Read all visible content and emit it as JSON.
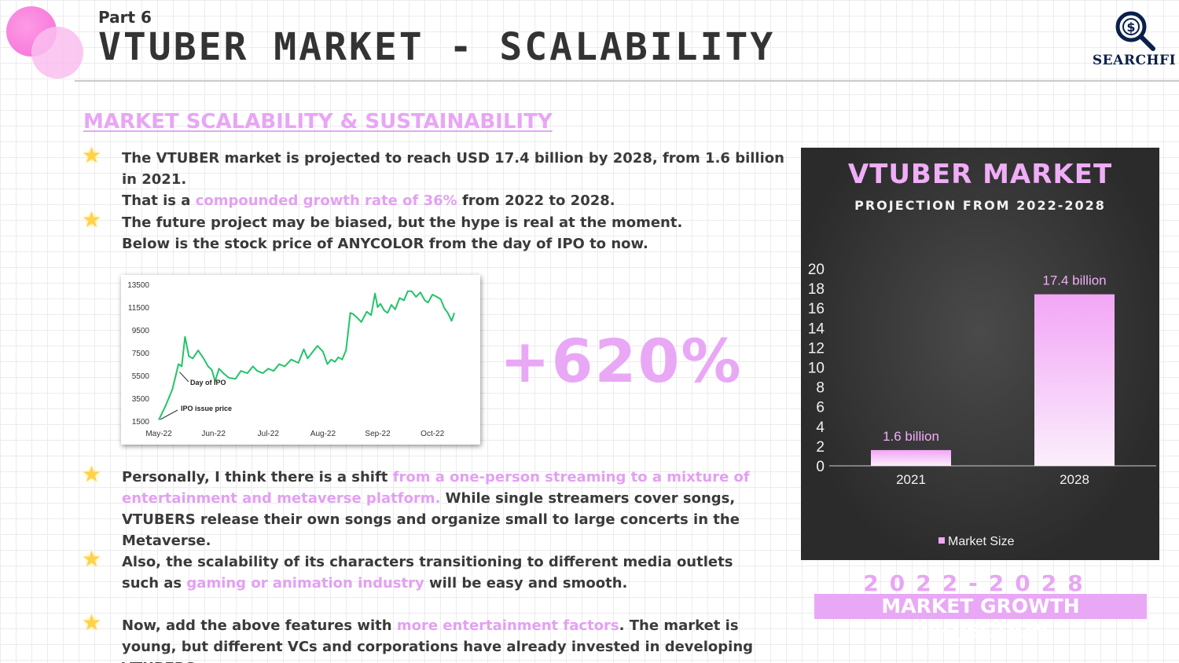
{
  "header": {
    "part": "Part 6",
    "title": "VTUBER MARKET - SCALABILITY",
    "logo_text": "SEARCHFI"
  },
  "section_heading": "MARKET SCALABILITY & SUSTAINABILITY",
  "bullets": [
    [
      {
        "t": "The VTUBER market is projected to reach USD 17.4 billion by 2028, from 1.6 billion in 2021.",
        "hl": false,
        "br": true
      },
      {
        "t": "That is a ",
        "hl": false
      },
      {
        "t": "compounded growth rate of 36%",
        "hl": true
      },
      {
        "t": " from 2022 to 2028.",
        "hl": false
      }
    ],
    [
      {
        "t": "The future project may be biased, but the hype is real at the moment.",
        "hl": false,
        "br": true
      },
      {
        "t": "Below is the stock price of ANYCOLOR from the day of IPO to now.",
        "hl": false
      }
    ],
    [
      {
        "t": "Personally, I think there is a shift ",
        "hl": false
      },
      {
        "t": "from a one-person streaming to a mixture of entertainment and metaverse platform.",
        "hl": true
      },
      {
        "t": " While single streamers cover songs, VTUBERS release their own songs and organize small to large concerts in the Metaverse.",
        "hl": false
      }
    ],
    [
      {
        "t": "Also, the scalability of its characters transitioning to different media outlets such as ",
        "hl": false
      },
      {
        "t": "gaming or animation industry",
        "hl": true
      },
      {
        "t": " will be easy and smooth.",
        "hl": false
      }
    ],
    [
      {
        "t": "Now, add the above features with ",
        "hl": false
      },
      {
        "t": "more entertainment factors",
        "hl": true
      },
      {
        "t": ". The market is young, but different VCs and corporations have already invested in developing VTUBERS.",
        "hl": false
      }
    ]
  ],
  "percent_badge": "+620%",
  "projection": {
    "years": "2022-2028",
    "banner": "MARKET GROWTH PROJECTION"
  },
  "colors": {
    "accent_pink": "#e9a8f6",
    "stock_line": "#22c46a",
    "panel_bg": "#333333"
  },
  "chart_data": [
    {
      "type": "line",
      "title": "",
      "xlabel": "",
      "ylabel": "",
      "xticks": [
        "May-22",
        "Jun-22",
        "Jul-22",
        "Aug-22",
        "Sep-22",
        "Oct-22"
      ],
      "yticks": [
        1500,
        3500,
        5500,
        7500,
        9500,
        11500,
        13500
      ],
      "ylim": [
        1500,
        13500
      ],
      "x_range_months": [
        0,
        5.5
      ],
      "annotations": [
        {
          "label": "Day of IPO",
          "x": 0.38,
          "y": 5800
        },
        {
          "label": "IPO issue price",
          "x": 0.0,
          "y": 1500
        }
      ],
      "series": [
        {
          "x": [
            0.0,
            0.12,
            0.25,
            0.32,
            0.36,
            0.42,
            0.48,
            0.55,
            0.62,
            0.72,
            0.82,
            0.9,
            0.97,
            1.03,
            1.1,
            1.18,
            1.28,
            1.4,
            1.5,
            1.62,
            1.72,
            1.8,
            1.9,
            2.0,
            2.1,
            2.2,
            2.3,
            2.42,
            2.55,
            2.65,
            2.72,
            2.8,
            2.9,
            3.0,
            3.08,
            3.15,
            3.22,
            3.28,
            3.35,
            3.42,
            3.5,
            3.55,
            3.62,
            3.7,
            3.8,
            3.88,
            3.95,
            4.0,
            4.05,
            4.12,
            4.18,
            4.25,
            4.32,
            4.4,
            4.48,
            4.55,
            4.62,
            4.7,
            4.78,
            4.86,
            4.92,
            5.0,
            5.08,
            5.15,
            5.22,
            5.28,
            5.35,
            5.4
          ],
          "values": [
            1600,
            2800,
            4300,
            5700,
            6500,
            6300,
            8900,
            7200,
            7000,
            7700,
            7000,
            6300,
            6000,
            5000,
            6100,
            5700,
            5300,
            5200,
            5900,
            5700,
            6300,
            5900,
            5700,
            6100,
            5900,
            6500,
            6300,
            6900,
            6600,
            7800,
            7000,
            7500,
            8100,
            7600,
            6500,
            6900,
            6700,
            7100,
            6900,
            7700,
            11000,
            10900,
            10600,
            10200,
            11100,
            10800,
            12700,
            11500,
            11800,
            11200,
            11000,
            11700,
            11300,
            12300,
            12100,
            12900,
            12900,
            12400,
            12800,
            12100,
            11900,
            12600,
            12400,
            12200,
            11400,
            11000,
            10300,
            11000
          ]
        }
      ]
    },
    {
      "type": "bar",
      "title": "VTUBER MARKET",
      "subtitle": "PROJECTION FROM 2022-2028",
      "categories": [
        "2021",
        "2028"
      ],
      "series": [
        {
          "name": "Market Size",
          "values": [
            1.6,
            17.4
          ],
          "data_labels": [
            "1.6 billion",
            "17.4 billion"
          ]
        }
      ],
      "ylim": [
        0,
        20
      ],
      "yticks": [
        0,
        2,
        4,
        6,
        8,
        10,
        12,
        14,
        16,
        18,
        20
      ],
      "legend": "bottom",
      "grid": false
    }
  ]
}
